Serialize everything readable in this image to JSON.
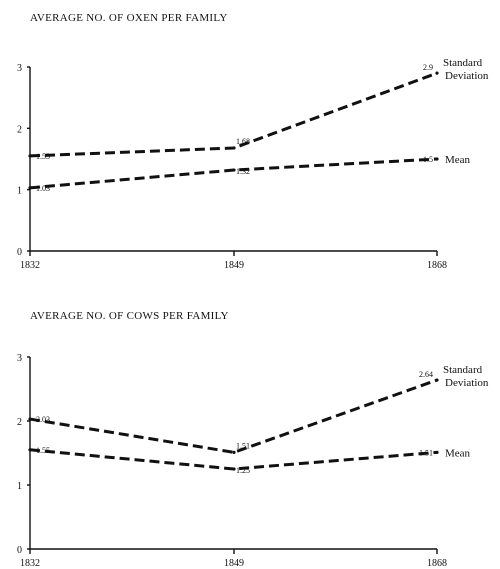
{
  "chart_data": [
    {
      "type": "line",
      "title": "AVERAGE NO. OF OXEN PER FAMILY",
      "x": [
        "1832",
        "1849",
        "1868"
      ],
      "ylim": [
        0,
        3
      ],
      "yticks": [
        "0",
        "1",
        "2",
        "3"
      ],
      "series": [
        {
          "name": "Standard Deviation",
          "name_lines": [
            "Standard",
            "Deviation"
          ],
          "values": [
            1.55,
            1.68,
            2.9
          ],
          "labels": [
            "1.55",
            "1.68",
            "2.9"
          ]
        },
        {
          "name": "Mean",
          "name_lines": [
            "Mean"
          ],
          "values": [
            1.03,
            1.32,
            1.5
          ],
          "labels": [
            "1.03",
            "1.32",
            "1.5"
          ]
        }
      ]
    },
    {
      "type": "line",
      "title": "AVERAGE NO. OF COWS PER FAMILY",
      "x": [
        "1832",
        "1849",
        "1868"
      ],
      "ylim": [
        0,
        3
      ],
      "yticks": [
        "0",
        "1",
        "2",
        "3"
      ],
      "series": [
        {
          "name": "Standard Deviation",
          "name_lines": [
            "Standard",
            "Deviation"
          ],
          "values": [
            2.03,
            1.51,
            2.64
          ],
          "labels": [
            "2.03",
            "1.51",
            "2.64"
          ]
        },
        {
          "name": "Mean",
          "name_lines": [
            "Mean"
          ],
          "values": [
            1.55,
            1.25,
            1.51
          ],
          "labels": [
            "1.55",
            "1.25",
            "1.51"
          ]
        }
      ]
    }
  ]
}
